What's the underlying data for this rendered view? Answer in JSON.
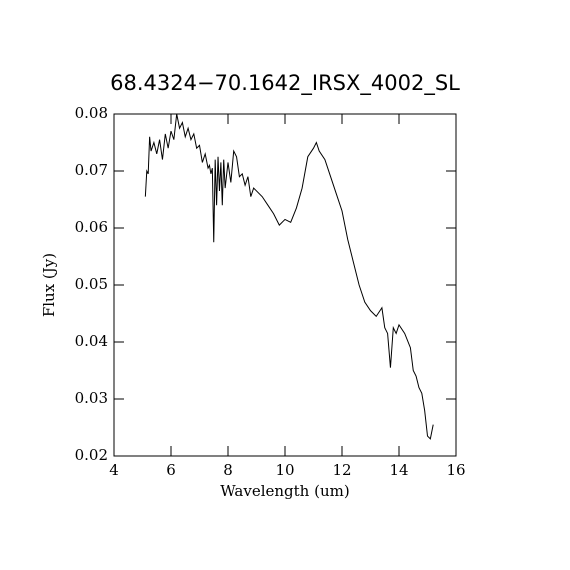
{
  "chart_data": {
    "type": "line",
    "title": "68.4324−70.1642_IRSX_4002_SL",
    "x_label": "Wavelength (um)",
    "y_label": "Flux (Jy)",
    "xlim": [
      4,
      16
    ],
    "xticks": [
      4,
      6,
      8,
      10,
      12,
      14,
      16
    ],
    "ylim": [
      0.02,
      0.08
    ],
    "yticks": [
      0.02,
      0.03,
      0.04,
      0.05,
      0.06,
      0.07,
      0.08
    ],
    "color": "#000000",
    "x": [
      5.1,
      5.15,
      5.2,
      5.25,
      5.3,
      5.4,
      5.5,
      5.6,
      5.7,
      5.8,
      5.9,
      6.0,
      6.1,
      6.2,
      6.3,
      6.4,
      6.5,
      6.6,
      6.7,
      6.8,
      6.9,
      7.0,
      7.1,
      7.2,
      7.3,
      7.35,
      7.4,
      7.45,
      7.5,
      7.55,
      7.6,
      7.65,
      7.7,
      7.75,
      7.8,
      7.85,
      7.9,
      8.0,
      8.1,
      8.2,
      8.3,
      8.4,
      8.5,
      8.6,
      8.7,
      8.8,
      8.9,
      9.0,
      9.2,
      9.4,
      9.6,
      9.8,
      10.0,
      10.2,
      10.4,
      10.6,
      10.8,
      11.0,
      11.1,
      11.2,
      11.4,
      11.6,
      11.8,
      12.0,
      12.2,
      12.4,
      12.6,
      12.8,
      13.0,
      13.2,
      13.4,
      13.5,
      13.6,
      13.7,
      13.8,
      13.9,
      14.0,
      14.2,
      14.4,
      14.5,
      14.6,
      14.7,
      14.8,
      14.9,
      15.0,
      15.1,
      15.2
    ],
    "values": [
      0.0655,
      0.07,
      0.0695,
      0.076,
      0.0735,
      0.075,
      0.073,
      0.0755,
      0.072,
      0.0765,
      0.074,
      0.077,
      0.0755,
      0.08,
      0.0775,
      0.0785,
      0.076,
      0.0775,
      0.0755,
      0.0765,
      0.074,
      0.0745,
      0.0715,
      0.073,
      0.0705,
      0.071,
      0.0695,
      0.0705,
      0.0575,
      0.072,
      0.064,
      0.0725,
      0.0665,
      0.0715,
      0.064,
      0.072,
      0.067,
      0.0715,
      0.068,
      0.0735,
      0.0725,
      0.069,
      0.0695,
      0.0675,
      0.069,
      0.0655,
      0.067,
      0.0665,
      0.0655,
      0.064,
      0.0625,
      0.0605,
      0.0615,
      0.061,
      0.0635,
      0.067,
      0.0725,
      0.074,
      0.075,
      0.0735,
      0.072,
      0.069,
      0.066,
      0.063,
      0.058,
      0.054,
      0.05,
      0.047,
      0.0455,
      0.0445,
      0.046,
      0.0425,
      0.0415,
      0.0355,
      0.0425,
      0.0415,
      0.043,
      0.0415,
      0.039,
      0.035,
      0.034,
      0.032,
      0.031,
      0.028,
      0.0235,
      0.023,
      0.0255
    ]
  }
}
